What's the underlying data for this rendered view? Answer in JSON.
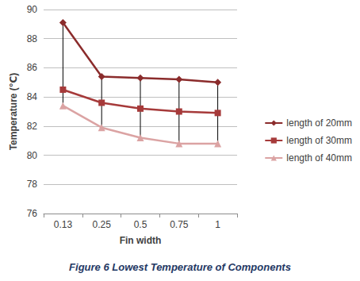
{
  "chart_data": {
    "type": "line",
    "title": "Figure 6 Lowest Temperature of Components",
    "x_label": "Fin width",
    "y_label": "Temperature (℃)",
    "categories": [
      "0.13",
      "0.25",
      "0.5",
      "0.75",
      "1"
    ],
    "series": [
      {
        "name": "length of 20mm",
        "color": "#8b2c2c",
        "marker": "diamond",
        "values": [
          89.1,
          85.4,
          85.3,
          85.2,
          85.0
        ]
      },
      {
        "name": "length of 30mm",
        "color": "#a63a3a",
        "marker": "square",
        "values": [
          84.5,
          83.6,
          83.2,
          83.0,
          82.9
        ]
      },
      {
        "name": "length of 40mm",
        "color": "#dba3a3",
        "marker": "triangle",
        "values": [
          83.4,
          81.9,
          81.2,
          80.8,
          80.8
        ]
      }
    ],
    "ylim": [
      76,
      90
    ],
    "yticks": [
      76,
      78,
      80,
      82,
      84,
      86,
      88,
      90
    ],
    "grid": true,
    "legend": "right"
  }
}
